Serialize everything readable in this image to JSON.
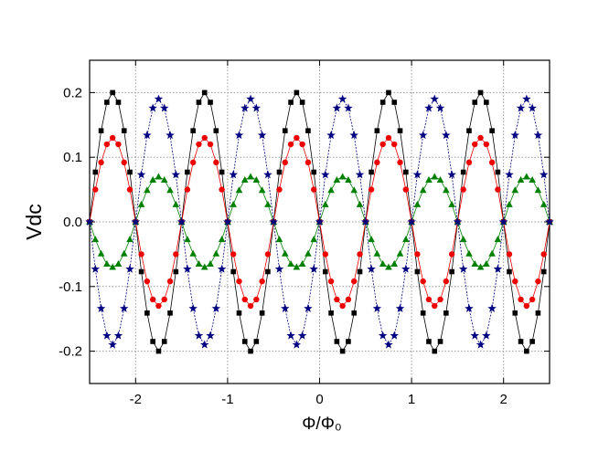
{
  "chart_data": {
    "type": "scatter",
    "x_label": "Φ/Φ₀",
    "y_label": "Vdc",
    "xlim": [
      -2.5,
      2.5
    ],
    "ylim": [
      -0.25,
      0.25
    ],
    "xticks": [
      -2,
      -1,
      {
        "value": 0,
        "label": "0"
      },
      1,
      2
    ],
    "yticks": [
      -0.2,
      -0.1,
      {
        "value": 0,
        "label": "0.0"
      },
      0.1,
      0.2
    ],
    "grid": true,
    "x": [
      -2.5,
      -2.4375,
      -2.375,
      -2.3125,
      -2.25,
      -2.1875,
      -2.125,
      -2.0625,
      -2,
      -1.9375,
      -1.875,
      -1.8125,
      -1.75,
      -1.6875,
      -1.625,
      -1.5625,
      -1.5,
      -1.4375,
      -1.375,
      -1.3125,
      -1.25,
      -1.1875,
      -1.125,
      -1.0625,
      -1,
      -0.9375,
      -0.875,
      -0.8125,
      -0.75,
      -0.6875,
      -0.625,
      -0.5625,
      -0.5,
      -0.4375,
      -0.375,
      -0.3125,
      -0.25,
      -0.1875,
      -0.125,
      -0.0625,
      0,
      0.0625,
      0.125,
      0.1875,
      0.25,
      0.3125,
      0.375,
      0.4375,
      0.5,
      0.5625,
      0.625,
      0.6875,
      0.75,
      0.8125,
      0.875,
      0.9375,
      1,
      1.0625,
      1.125,
      1.1875,
      1.25,
      1.3125,
      1.375,
      1.4375,
      1.5,
      1.5625,
      1.625,
      1.6875,
      1.75,
      1.8125,
      1.875,
      1.9375,
      2,
      2.0625,
      2.125,
      2.1875,
      2.25,
      2.3125,
      2.375,
      2.4375,
      2.5
    ],
    "series": [
      {
        "color": "#000000",
        "marker": "square",
        "values": [
          0,
          0.077,
          0.141,
          0.185,
          0.2,
          0.185,
          0.141,
          0.077,
          0,
          -0.077,
          -0.141,
          -0.185,
          -0.2,
          -0.185,
          -0.141,
          -0.077,
          0,
          0.077,
          0.141,
          0.185,
          0.2,
          0.185,
          0.141,
          0.077,
          0,
          -0.077,
          -0.141,
          -0.185,
          -0.2,
          -0.185,
          -0.141,
          -0.077,
          0,
          0.077,
          0.141,
          0.185,
          0.2,
          0.185,
          0.141,
          0.077,
          0,
          -0.077,
          -0.141,
          -0.185,
          -0.2,
          -0.185,
          -0.141,
          -0.077,
          0,
          0.077,
          0.141,
          0.185,
          0.2,
          0.185,
          0.141,
          0.077,
          0,
          -0.077,
          -0.141,
          -0.185,
          -0.2,
          -0.185,
          -0.141,
          -0.077,
          0,
          0.077,
          0.141,
          0.185,
          0.2,
          0.185,
          0.141,
          0.077,
          0,
          -0.077,
          -0.141,
          -0.185,
          -0.2,
          -0.185,
          -0.141,
          -0.077,
          0
        ]
      },
      {
        "color": "#ee0000",
        "marker": "circle",
        "values": [
          0,
          0.05,
          0.092,
          0.12,
          0.13,
          0.12,
          0.092,
          0.05,
          0,
          -0.05,
          -0.092,
          -0.12,
          -0.13,
          -0.12,
          -0.092,
          -0.05,
          0,
          0.05,
          0.092,
          0.12,
          0.13,
          0.12,
          0.092,
          0.05,
          0,
          -0.05,
          -0.092,
          -0.12,
          -0.13,
          -0.12,
          -0.092,
          -0.05,
          0,
          0.05,
          0.092,
          0.12,
          0.13,
          0.12,
          0.092,
          0.05,
          0,
          -0.05,
          -0.092,
          -0.12,
          -0.13,
          -0.12,
          -0.092,
          -0.05,
          0,
          0.05,
          0.092,
          0.12,
          0.13,
          0.12,
          0.092,
          0.05,
          0,
          -0.05,
          -0.092,
          -0.12,
          -0.13,
          -0.12,
          -0.092,
          -0.05,
          0,
          0.05,
          0.092,
          0.12,
          0.13,
          0.12,
          0.092,
          0.05,
          0,
          -0.05,
          -0.092,
          -0.12,
          -0.13,
          -0.12,
          -0.092,
          -0.05,
          0
        ]
      },
      {
        "color": "#008000",
        "marker": "triangle",
        "values": [
          0,
          -0.027,
          -0.049,
          -0.065,
          -0.07,
          -0.065,
          -0.049,
          -0.027,
          0,
          0.027,
          0.049,
          0.065,
          0.07,
          0.065,
          0.049,
          0.027,
          0,
          -0.027,
          -0.049,
          -0.065,
          -0.07,
          -0.065,
          -0.049,
          -0.027,
          0,
          0.027,
          0.049,
          0.065,
          0.07,
          0.065,
          0.049,
          0.027,
          0,
          -0.027,
          -0.049,
          -0.065,
          -0.07,
          -0.065,
          -0.049,
          -0.027,
          0,
          0.027,
          0.049,
          0.065,
          0.07,
          0.065,
          0.049,
          0.027,
          0,
          -0.027,
          -0.049,
          -0.065,
          -0.07,
          -0.065,
          -0.049,
          -0.027,
          0,
          0.027,
          0.049,
          0.065,
          0.07,
          0.065,
          0.049,
          0.027,
          0,
          -0.027,
          -0.049,
          -0.065,
          -0.07,
          -0.065,
          -0.049,
          -0.027,
          0,
          0.027,
          0.049,
          0.065,
          0.07,
          0.065,
          0.049,
          0.027,
          0
        ]
      },
      {
        "color": "#000080",
        "marker": "star",
        "values": [
          0,
          -0.073,
          -0.134,
          -0.176,
          -0.19,
          -0.176,
          -0.134,
          -0.073,
          0,
          0.073,
          0.134,
          0.176,
          0.19,
          0.176,
          0.134,
          0.073,
          0,
          -0.073,
          -0.134,
          -0.176,
          -0.19,
          -0.176,
          -0.134,
          -0.073,
          0,
          0.073,
          0.134,
          0.176,
          0.19,
          0.176,
          0.134,
          0.073,
          0,
          -0.073,
          -0.134,
          -0.176,
          -0.19,
          -0.176,
          -0.134,
          -0.073,
          0,
          0.073,
          0.134,
          0.176,
          0.19,
          0.176,
          0.134,
          0.073,
          0,
          -0.073,
          -0.134,
          -0.176,
          -0.19,
          -0.176,
          -0.134,
          -0.073,
          0,
          0.073,
          0.134,
          0.176,
          0.19,
          0.176,
          0.134,
          0.073,
          0,
          -0.073,
          -0.134,
          -0.176,
          -0.19,
          -0.176,
          -0.134,
          -0.073,
          0,
          0.073,
          0.134,
          0.176,
          0.19,
          0.176,
          0.134,
          0.073,
          0
        ]
      }
    ]
  }
}
